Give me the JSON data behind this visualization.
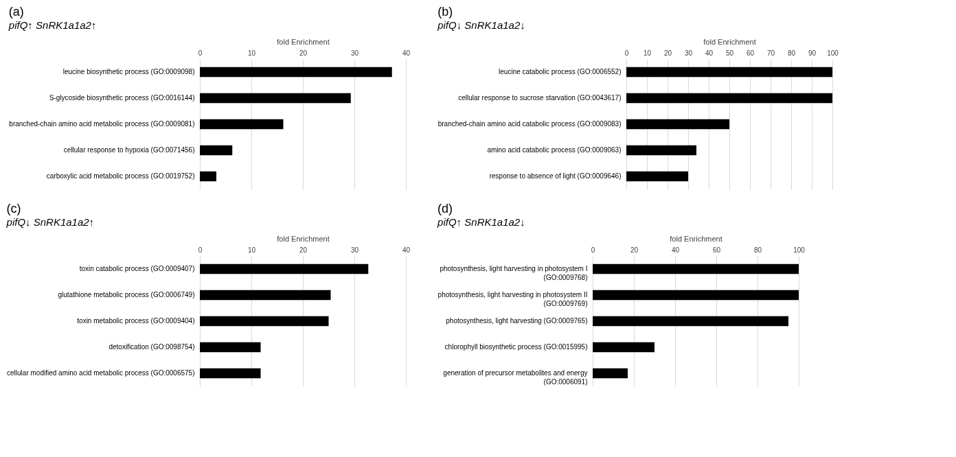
{
  "chart_data": [
    {
      "type": "bar",
      "orientation": "horizontal",
      "title": "(a)",
      "subtitle": "pifQ↑    SnRK1a1a2↑",
      "xlabel": "fold Enrichment",
      "categories": [
        "leucine biosynthetic process (GO:0009098)",
        "S-glycoside biosynthetic process (GO:0016144)",
        "branched-chain amino acid metabolic process (GO:0009081)",
        "cellular response to hypoxia (GO:0071456)",
        "carboxylic acid metabolic process (GO:0019752)"
      ],
      "values": [
        37.3,
        29.3,
        16.2,
        6.3,
        3.2
      ],
      "color": "#000000",
      "xlim": [
        0,
        40
      ],
      "xticks": [
        0,
        10,
        20,
        30,
        40
      ],
      "grid": "x"
    },
    {
      "type": "bar",
      "orientation": "horizontal",
      "title": "(b)",
      "subtitle": "pifQ↓    SnRK1a1a2↓",
      "xlabel": "fold Enrichment",
      "categories": [
        "leucine catabolic process (GO:0006552)",
        "cellular response to sucrose starvation (GO:0043617)",
        "branched-chain amino acid catabolic process (GO:0009083)",
        "amino acid catabolic process (GO:0009063)",
        "response to absence of light (GO:0009646)"
      ],
      "values": [
        100,
        100,
        50,
        34,
        30
      ],
      "color": "#000000",
      "xlim": [
        0,
        100
      ],
      "xticks": [
        0,
        10,
        20,
        30,
        40,
        50,
        60,
        70,
        80,
        90,
        100
      ],
      "grid": "x"
    },
    {
      "type": "bar",
      "orientation": "horizontal",
      "title": "(c)",
      "subtitle": "pifQ↓    SnRK1a1a2↑",
      "xlabel": "fold Enrichment",
      "categories": [
        "toxin catabolic process (GO:0009407)",
        "glutathione metabolic process (GO:0006749)",
        "toxin metabolic process (GO:0009404)",
        "detoxification (GO:0098754)",
        "cellular modified amino acid metabolic process (GO:0006575)"
      ],
      "values": [
        32.7,
        25.4,
        25.0,
        11.8,
        11.8
      ],
      "color": "#000000",
      "xlim": [
        0,
        40
      ],
      "xticks": [
        0,
        10,
        20,
        30,
        40
      ],
      "grid": "x"
    },
    {
      "type": "bar",
      "orientation": "horizontal",
      "title": "(d)",
      "subtitle": "pifQ↑    SnRK1a1a2↓",
      "xlabel": "fold Enrichment",
      "categories": [
        "photosynthesis, light harvesting in photosystem I\n(GO:0009768)",
        "photosynthesis, light harvesting in photosystem II\n(GO:0009769)",
        "photosynthesis, light harvesting (GO:0009765)",
        "chlorophyll biosynthetic process (GO:0015995)",
        "generation of precursor metabolites and energy\n(GO:0006091)"
      ],
      "values": [
        100,
        100,
        95,
        30,
        17
      ],
      "color": "#000000",
      "xlim": [
        0,
        100
      ],
      "xticks": [
        0,
        20,
        40,
        60,
        80,
        100
      ],
      "grid": "x"
    }
  ]
}
